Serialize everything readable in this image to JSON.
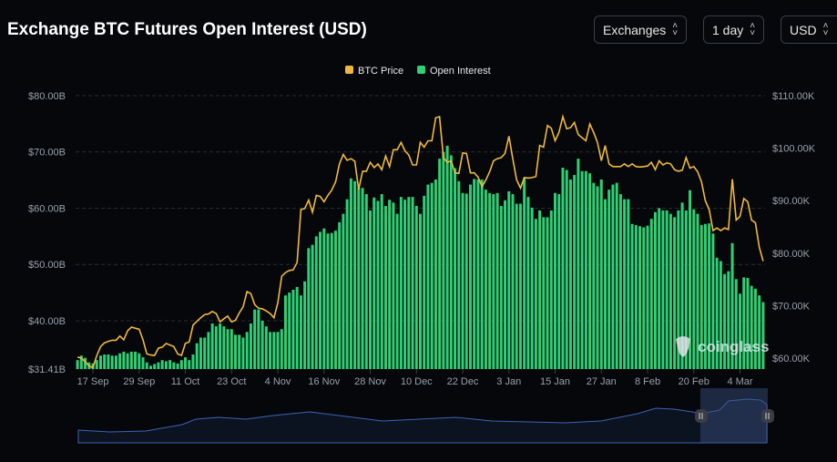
{
  "header": {
    "title": "Exchange BTC Futures Open Interest (USD)"
  },
  "controls": [
    {
      "label": "Exchanges",
      "icon": "chevron-up-down-icon"
    },
    {
      "label": "1 day",
      "icon": "chevron-up-down-icon"
    },
    {
      "label": "USD",
      "icon": "chevron-up-down-icon"
    }
  ],
  "watermark": "coinglass",
  "colors": {
    "price": "#f0b93b",
    "open_interest": "#2fcf74",
    "navigator_line": "#3e63b5",
    "grid": "#2a2d33"
  },
  "chart_data": {
    "type": "bar+line",
    "title": "Exchange BTC Futures Open Interest (USD)",
    "legend": {
      "placement": "top-center",
      "entries": [
        "BTC Price",
        "Open Interest"
      ]
    },
    "grid": true,
    "x_tick_labels": [
      "17 Sep",
      "29 Sep",
      "11 Oct",
      "23 Oct",
      "4 Nov",
      "16 Nov",
      "28 Nov",
      "10 Dec",
      "22 Dec",
      "3 Jan",
      "15 Jan",
      "27 Jan",
      "8 Feb",
      "20 Feb",
      "4 Mar"
    ],
    "y_left": {
      "tick_labels": [
        "$31.41B",
        "$40.00B",
        "$50.00B",
        "$60.00B",
        "$70.00B",
        "$80.00B"
      ],
      "ticks": [
        31.41,
        40,
        50,
        60,
        70,
        80
      ],
      "range": [
        31.41,
        80
      ],
      "unit": "B USD"
    },
    "y_right": {
      "tick_labels": [
        "$60.00K",
        "$70.00K",
        "$80.00K",
        "$90.00K",
        "$100.00K",
        "$110.00K"
      ],
      "ticks": [
        60,
        70,
        80,
        90,
        100,
        110
      ],
      "range": [
        57.92,
        110
      ],
      "unit": "K USD"
    },
    "dates": [
      "13 Sep",
      "14 Sep",
      "15 Sep",
      "16 Sep",
      "17 Sep",
      "18 Sep",
      "19 Sep",
      "20 Sep",
      "21 Sep",
      "22 Sep",
      "23 Sep",
      "24 Sep",
      "25 Sep",
      "26 Sep",
      "27 Sep",
      "28 Sep",
      "29 Sep",
      "30 Sep",
      "1 Oct",
      "2 Oct",
      "3 Oct",
      "4 Oct",
      "5 Oct",
      "6 Oct",
      "7 Oct",
      "8 Oct",
      "9 Oct",
      "10 Oct",
      "11 Oct",
      "12 Oct",
      "13 Oct",
      "14 Oct",
      "15 Oct",
      "16 Oct",
      "17 Oct",
      "18 Oct",
      "19 Oct",
      "20 Oct",
      "21 Oct",
      "22 Oct",
      "23 Oct",
      "24 Oct",
      "25 Oct",
      "26 Oct",
      "27 Oct",
      "28 Oct",
      "29 Oct",
      "30 Oct",
      "31 Oct",
      "1 Nov",
      "2 Nov",
      "3 Nov",
      "4 Nov",
      "5 Nov",
      "6 Nov",
      "7 Nov",
      "8 Nov",
      "9 Nov",
      "10 Nov",
      "11 Nov",
      "12 Nov",
      "13 Nov",
      "14 Nov",
      "15 Nov",
      "16 Nov",
      "17 Nov",
      "18 Nov",
      "19 Nov",
      "20 Nov",
      "21 Nov",
      "22 Nov",
      "23 Nov",
      "24 Nov",
      "25 Nov",
      "26 Nov",
      "27 Nov",
      "28 Nov",
      "29 Nov",
      "30 Nov",
      "1 Dec",
      "2 Dec",
      "3 Dec",
      "4 Dec",
      "5 Dec",
      "6 Dec",
      "7 Dec",
      "8 Dec",
      "9 Dec",
      "10 Dec",
      "11 Dec",
      "12 Dec",
      "13 Dec",
      "14 Dec",
      "15 Dec",
      "16 Dec",
      "17 Dec",
      "18 Dec",
      "19 Dec",
      "20 Dec",
      "21 Dec",
      "22 Dec",
      "23 Dec",
      "24 Dec",
      "25 Dec",
      "26 Dec",
      "27 Dec",
      "28 Dec",
      "29 Dec",
      "30 Dec",
      "31 Dec",
      "1 Jan",
      "2 Jan",
      "3 Jan",
      "4 Jan",
      "5 Jan",
      "6 Jan",
      "7 Jan",
      "8 Jan",
      "9 Jan",
      "10 Jan",
      "11 Jan",
      "12 Jan",
      "13 Jan",
      "14 Jan",
      "15 Jan",
      "16 Jan",
      "17 Jan",
      "18 Jan",
      "19 Jan",
      "20 Jan",
      "21 Jan",
      "22 Jan",
      "23 Jan",
      "24 Jan",
      "25 Jan",
      "26 Jan",
      "27 Jan",
      "28 Jan",
      "29 Jan",
      "30 Jan",
      "31 Jan",
      "1 Feb",
      "2 Feb",
      "3 Feb",
      "4 Feb",
      "5 Feb",
      "6 Feb",
      "7 Feb",
      "8 Feb",
      "9 Feb",
      "10 Feb",
      "11 Feb",
      "12 Feb",
      "13 Feb",
      "14 Feb",
      "15 Feb",
      "16 Feb",
      "17 Feb",
      "18 Feb",
      "19 Feb",
      "20 Feb",
      "21 Feb",
      "22 Feb",
      "23 Feb",
      "24 Feb",
      "25 Feb",
      "26 Feb",
      "27 Feb",
      "28 Feb",
      "1 Mar",
      "2 Mar",
      "3 Mar",
      "4 Mar",
      "5 Mar",
      "6 Mar",
      "7 Mar",
      "8 Mar",
      "9 Mar",
      "10 Mar"
    ],
    "series": [
      {
        "name": "Open Interest",
        "type": "bar",
        "axis": "left",
        "unit": "B USD",
        "values": [
          33,
          33.8,
          33.4,
          32.6,
          32.4,
          33,
          33.8,
          34,
          34,
          33.8,
          33.8,
          34.2,
          34.5,
          34.2,
          34.5,
          34.5,
          34.2,
          33.5,
          32.6,
          32,
          32.3,
          32.6,
          33,
          32.8,
          33,
          32.6,
          32.4,
          33,
          33.5,
          33,
          34,
          36,
          37,
          37,
          38,
          39.5,
          39,
          39.5,
          39,
          38.5,
          38.5,
          37.5,
          37.5,
          37,
          38,
          39.5,
          42,
          42,
          40,
          39,
          38,
          38,
          38,
          38.5,
          44.5,
          45,
          45.5,
          46,
          44.5,
          47,
          52.9,
          53.5,
          55,
          55.8,
          56.4,
          55.5,
          55.6,
          56,
          57.5,
          59,
          61.6,
          65.3,
          64.8,
          63.6,
          63.6,
          62.5,
          59.6,
          61.9,
          61.3,
          62.5,
          60.4,
          61.5,
          61,
          59,
          62,
          61.5,
          62,
          62,
          60.4,
          59,
          62.2,
          64.2,
          64.5,
          65.1,
          68.8,
          70,
          71.1,
          69.4,
          67.1,
          64.8,
          62.7,
          62.6,
          64.2,
          65.2,
          65.1,
          65.1,
          63.3,
          62.7,
          62.5,
          62.7,
          60.4,
          61.4,
          63,
          62.5,
          60.8,
          60.8,
          65.4,
          62,
          60.1,
          58.1,
          59.6,
          58.4,
          58.4,
          59.6,
          62.7,
          62.5,
          67.2,
          66.8,
          65.1,
          65.9,
          68.8,
          66.6,
          66.6,
          66.2,
          64.5,
          63.9,
          65.1,
          61.6,
          63.3,
          64.2,
          64.5,
          62.5,
          61.6,
          61.6,
          57.2,
          57,
          56.8,
          56.6,
          56.9,
          58.1,
          59.3,
          60,
          59.6,
          59.6,
          59,
          58.4,
          59.6,
          61,
          59.6,
          63.2,
          59.8,
          59,
          57,
          57.2,
          57.3,
          55.5,
          51.2,
          50.6,
          48.3,
          48.8,
          53.8,
          47.4,
          44.8,
          47.7,
          47.6,
          46.2,
          45.7,
          44.5,
          43.3
        ]
      },
      {
        "name": "BTC Price",
        "type": "line",
        "axis": "right",
        "unit": "K USD",
        "values": [
          60.2,
          60.0,
          59.3,
          58.5,
          58.2,
          60.5,
          62.2,
          62.9,
          63.2,
          63.4,
          63.4,
          64.2,
          63.5,
          65.2,
          65.9,
          65.7,
          65.5,
          63.5,
          60.8,
          60.6,
          60.5,
          61.9,
          62.1,
          62.8,
          62.5,
          62.2,
          60.8,
          60.5,
          62.8,
          63.1,
          66.3,
          67,
          67.7,
          68.3,
          68.4,
          68.9,
          68.5,
          66.9,
          67.5,
          68,
          66.9,
          67.2,
          68.6,
          69.8,
          72.7,
          72.3,
          70.2,
          69.5,
          69.4,
          69,
          68.5,
          67.7,
          70.5,
          75.6,
          76.3,
          76.7,
          76.8,
          78.2,
          88.3,
          88.5,
          90.1,
          87.8,
          91,
          90.8,
          89.8,
          91,
          92,
          93.6,
          97,
          98.8,
          97.7,
          98,
          97.5,
          92.1,
          95.6,
          95.6,
          97.3,
          96.3,
          97,
          95.9,
          98.5,
          96.5,
          99.7,
          99.7,
          101.1,
          99.5,
          98.7,
          96.8,
          96.8,
          101.1,
          100.2,
          101.4,
          101.4,
          105.8,
          106,
          98.2,
          97.3,
          97.6,
          95.3,
          95.2,
          99.1,
          99,
          95.3,
          95.3,
          94.5,
          92.7,
          93.9,
          95.5,
          97.6,
          98,
          98.2,
          99,
          102.3,
          98,
          94,
          92.4,
          94.4,
          94.3,
          94.4,
          94.6,
          100.5,
          100.2,
          104.3,
          103.8,
          101.4,
          103,
          106,
          103.7,
          103.9,
          104.9,
          102.6,
          102,
          101.4,
          104.6,
          103,
          101.1,
          97.6,
          100.5,
          97,
          96.5,
          96.5,
          96.5,
          97,
          96.5,
          97,
          96.5,
          96.4,
          96.5,
          96.6,
          97.3,
          95.9,
          97.6,
          96.8,
          97.2,
          97,
          95.9,
          95.6,
          95.8,
          98.2,
          96.2,
          96.5,
          95.5,
          93.6,
          90,
          88.3,
          84.3,
          84.8,
          84.3,
          84.8,
          84.5,
          94.1,
          86.3,
          87,
          90.4,
          89.8,
          86.3,
          85.8,
          81.1,
          78.5
        ]
      }
    ]
  }
}
